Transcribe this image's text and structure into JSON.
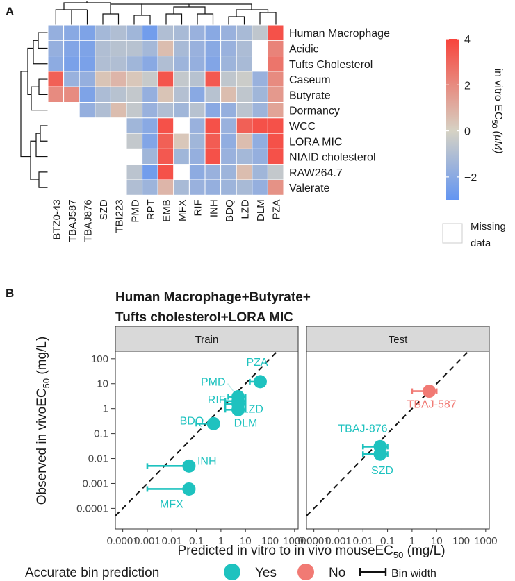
{
  "panel_a": {
    "label": "A",
    "heatmap": {
      "rows": [
        "Human Macrophage",
        "Acidic",
        "Tufts Cholesterol",
        "Caseum",
        "Butyrate",
        "Dormancy",
        "WCC",
        "LORA MIC",
        "NIAID cholesterol",
        "RAW264.7",
        "Valerate"
      ],
      "cols": [
        "BTZ0-43",
        "TBAJ587",
        "TBAJ876",
        "SZD",
        "TBI223",
        "PMD",
        "RPT",
        "EMB",
        "MFX",
        "RIF",
        "INH",
        "BDQ",
        "LZD",
        "DLM",
        "PZA"
      ],
      "values": [
        [
          -1.7,
          -2.0,
          -2.3,
          -1.3,
          -1.0,
          -1.4,
          -2.6,
          -1.0,
          -1.2,
          -1.6,
          -2.0,
          -1.6,
          -1.2,
          -0.6,
          3.6
        ],
        [
          -1.7,
          -2.2,
          -2.3,
          -1.0,
          -0.8,
          -0.8,
          -1.3,
          0.6,
          -1.2,
          -1.6,
          -2.0,
          -1.6,
          -1.1,
          null,
          2.2
        ],
        [
          -1.9,
          -2.4,
          -2.4,
          -1.0,
          -1.0,
          -1.4,
          -2.0,
          -1.0,
          -1.5,
          -1.7,
          -2.2,
          -1.5,
          -1.2,
          null,
          2.6
        ],
        [
          3.2,
          -1.6,
          -1.7,
          0.4,
          0.8,
          0.3,
          -0.4,
          3.5,
          -0.5,
          -0.8,
          3.4,
          -0.6,
          -0.3,
          -1.6,
          2.0
        ],
        [
          2.0,
          2.0,
          -2.3,
          -1.1,
          -0.8,
          -0.5,
          -1.7,
          0.4,
          -0.9,
          -2.0,
          -0.8,
          0.6,
          -0.6,
          -1.4,
          1.6
        ],
        [
          null,
          null,
          -1.7,
          -1.0,
          0.6,
          -0.5,
          -1.6,
          -1.0,
          -1.4,
          -0.8,
          -2.0,
          -1.7,
          -0.7,
          -1.5,
          1.3
        ],
        [
          null,
          null,
          null,
          null,
          null,
          -1.4,
          -2.0,
          3.6,
          null,
          -1.6,
          3.6,
          -1.6,
          3.2,
          3.6,
          3.6
        ],
        [
          null,
          null,
          null,
          null,
          null,
          -0.5,
          -2.2,
          3.2,
          0.3,
          -1.4,
          3.3,
          -1.8,
          0.6,
          -1.8,
          3.6
        ],
        [
          null,
          null,
          null,
          null,
          null,
          null,
          -1.4,
          3.4,
          -1.4,
          -1.7,
          3.6,
          -1.6,
          -1.3,
          -1.7,
          3.6
        ],
        [
          null,
          null,
          null,
          null,
          null,
          -0.7,
          -2.6,
          3.6,
          null,
          -1.9,
          -1.6,
          -1.5,
          0.6,
          -1.4,
          -0.5
        ],
        [
          null,
          null,
          null,
          null,
          null,
          -1.0,
          -1.5,
          0.8,
          -1.2,
          -1.6,
          -1.7,
          -1.5,
          -1.2,
          -1.7,
          1.8
        ]
      ]
    },
    "colorbar": {
      "title": "in vitro EC",
      "title_sub": "50",
      "title_unit": "(μM)",
      "ticks": [
        "4",
        "2",
        "0",
        "−2"
      ],
      "tick_values": [
        4,
        2,
        0,
        -2
      ],
      "range": [
        -3,
        4
      ],
      "low_color": "#6395f2",
      "mid_color": "#d6d2c4",
      "high_color": "#f8433b",
      "missing_label_1": "Missing",
      "missing_label_2": "data"
    }
  },
  "panel_b": {
    "label": "B",
    "title_line1": "Human Macrophage+Butyrate+",
    "title_line2": "Tufts cholesterol+LORA MIC",
    "facets": [
      "Train",
      "Test"
    ],
    "y_tick_labels": [
      "100",
      "10",
      "1",
      "0.1",
      "0.01",
      "0.001",
      "0.0001"
    ],
    "y_tick_exponents": [
      2,
      1,
      0,
      -1,
      -2,
      -3,
      -4
    ],
    "x_tick_labels": [
      "0.0001",
      "0.001",
      "0.01",
      "0.1",
      "1",
      "10",
      "100",
      "1000"
    ],
    "x_tick_exponents": [
      -4,
      -3,
      -2,
      -1,
      0,
      1,
      2,
      3
    ],
    "y_axis_label": "Observed in vivoEC",
    "y_axis_sub": "50",
    "y_axis_unit": " (mg/L)",
    "x_axis_label": "Predicted in vitro to in vivo mouseEC",
    "x_axis_sub": "50",
    "x_axis_unit": " (mg/L)",
    "legend": {
      "title": "Accurate bin prediction",
      "yes": "Yes",
      "no": "No",
      "bin_width": "Bin width",
      "yes_color": "#1ec2bf",
      "no_color": "#f17a74"
    }
  },
  "chart_data": [
    {
      "type": "heatmap",
      "title": "",
      "x": [
        "BTZ0-43",
        "TBAJ587",
        "TBAJ876",
        "SZD",
        "TBI223",
        "PMD",
        "RPT",
        "EMB",
        "MFX",
        "RIF",
        "INH",
        "BDQ",
        "LZD",
        "DLM",
        "PZA"
      ],
      "y": [
        "Human Macrophage",
        "Acidic",
        "Tufts Cholesterol",
        "Caseum",
        "Butyrate",
        "Dormancy",
        "WCC",
        "LORA MIC",
        "NIAID cholesterol",
        "RAW264.7",
        "Valerate"
      ],
      "legend_title": "in vitro EC50 (μM)",
      "note": "values are log-scale EC50, null = missing data; see panel_a.heatmap.values"
    },
    {
      "type": "scatter",
      "title": "Human Macrophage+Butyrate+ Tufts cholesterol+LORA MIC",
      "xlabel": "Predicted in vitro to in vivo mouseEC50 (mg/L)",
      "ylabel": "Observed in vivoEC50 (mg/L)",
      "x_scale": "log10",
      "y_scale": "log10",
      "xlim": [
        5e-05,
        1400
      ],
      "ylim": [
        1.5e-05,
        200
      ],
      "reference_line": "y = x (dashed)",
      "series": [
        {
          "facet": "Train",
          "points": [
            {
              "label": "PZA",
              "x": 40,
              "y": 12,
              "x_low": 15,
              "x_high": 65,
              "accurate": "Yes"
            },
            {
              "label": "PMD",
              "x": 5,
              "y": 3,
              "x_low": 2,
              "x_high": 10,
              "accurate": "Yes"
            },
            {
              "label": "RIF",
              "x": 5,
              "y": 2,
              "x_low": 1.5,
              "x_high": 10,
              "accurate": "Yes"
            },
            {
              "label": "LZD",
              "x": 5,
              "y": 1.5,
              "x_low": 1.5,
              "x_high": 10,
              "accurate": "Yes"
            },
            {
              "label": "DLM",
              "x": 5,
              "y": 0.9,
              "x_low": 1.5,
              "x_high": 10,
              "accurate": "Yes"
            },
            {
              "label": "BDQ",
              "x": 0.5,
              "y": 0.25,
              "x_low": 0.1,
              "x_high": 0.8,
              "accurate": "Yes"
            },
            {
              "label": "INH",
              "x": 0.05,
              "y": 0.005,
              "x_low": 0.001,
              "x_high": 0.08,
              "accurate": "Yes"
            },
            {
              "label": "MFX",
              "x": 0.05,
              "y": 0.0006,
              "x_low": 0.001,
              "x_high": 0.08,
              "accurate": "Yes"
            }
          ]
        },
        {
          "facet": "Test",
          "points": [
            {
              "label": "TBAJ-587",
              "x": 5,
              "y": 5,
              "x_low": 1,
              "x_high": 10,
              "accurate": "No"
            },
            {
              "label": "TBAJ-876",
              "x": 0.05,
              "y": 0.03,
              "x_low": 0.01,
              "x_high": 0.1,
              "accurate": "Yes"
            },
            {
              "label": "SZD",
              "x": 0.05,
              "y": 0.015,
              "x_low": 0.01,
              "x_high": 0.1,
              "accurate": "Yes"
            }
          ]
        }
      ]
    }
  ]
}
